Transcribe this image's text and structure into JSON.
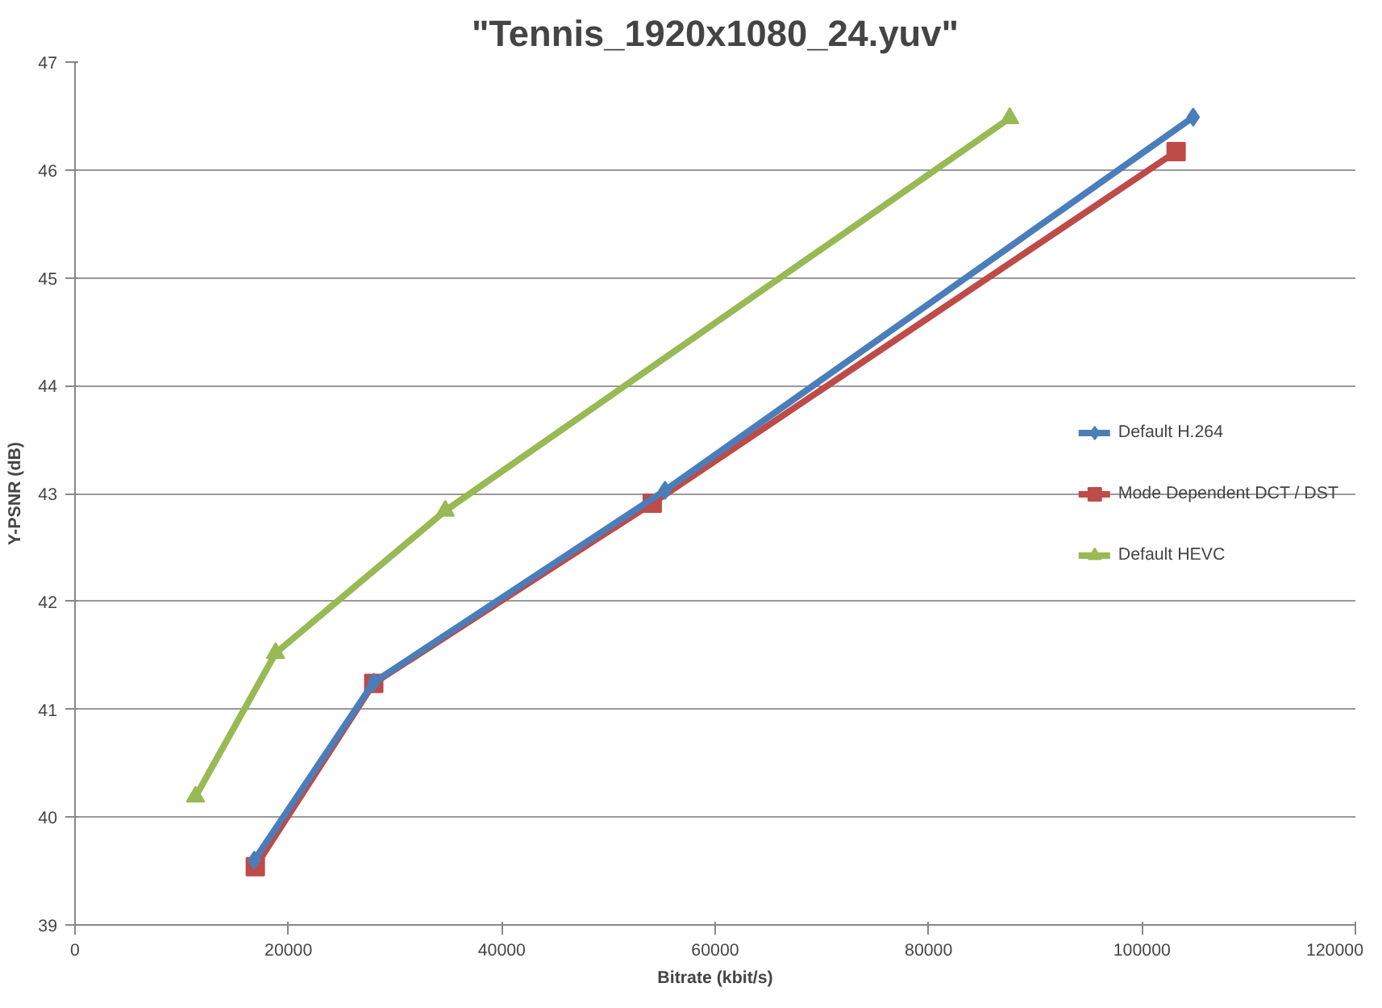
{
  "chart_data": {
    "type": "line",
    "title": "\"Tennis_1920x1080_24.yuv\"",
    "xlabel": "Bitrate (kbit/s)",
    "ylabel": "Y-PSNR (dB)",
    "xlim": [
      0,
      120000
    ],
    "xticks": [
      0,
      20000,
      40000,
      60000,
      80000,
      100000,
      120000
    ],
    "ylim": [
      39,
      47
    ],
    "yticks": [
      39,
      40,
      41,
      42,
      43,
      44,
      45,
      46,
      47
    ],
    "grid": "y",
    "legend": "right",
    "line_style": "solid",
    "series": [
      {
        "name": "Default H.264",
        "color": "#4a7ebb",
        "marker": "diamond",
        "x": [
          16800,
          28000,
          55300,
          104800
        ],
        "values": [
          39.6,
          41.25,
          43.03,
          46.49
        ]
      },
      {
        "name": "Mode Dependent DCT / DST",
        "color": "#be4b48",
        "marker": "square",
        "x": [
          16900,
          28000,
          54100,
          103200
        ],
        "values": [
          39.54,
          41.24,
          42.91,
          46.17
        ]
      },
      {
        "name": "Default HEVC",
        "color": "#98b954",
        "marker": "triangle",
        "x": [
          11300,
          18800,
          34700,
          87600
        ],
        "values": [
          40.19,
          41.52,
          42.84,
          46.48
        ]
      }
    ]
  }
}
